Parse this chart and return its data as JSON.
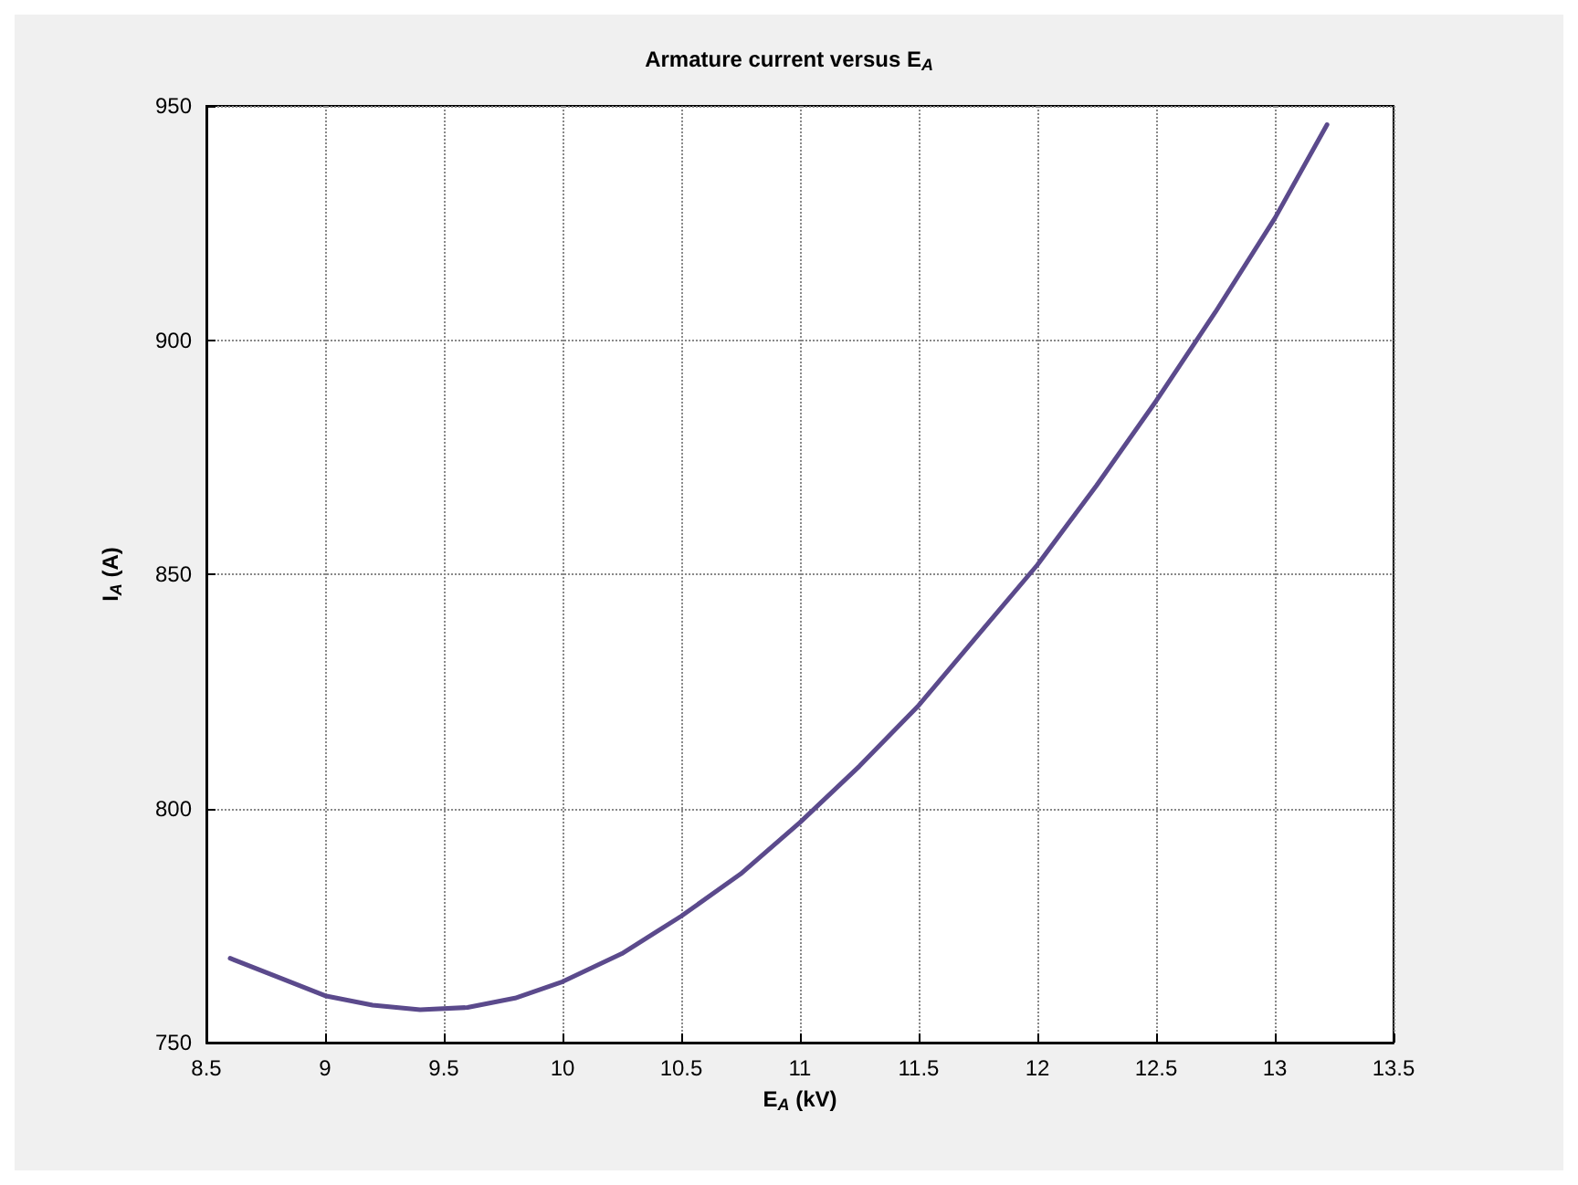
{
  "chart_data": {
    "type": "line",
    "title": "Armature current versus E$_{A}$",
    "xlabel": "E$_{A}$ (kV)",
    "ylabel": "I$_{A}$ (A)",
    "x": [
      8.6,
      8.8,
      9,
      9.2,
      9.4,
      9.6,
      9.8,
      10,
      10.25,
      10.5,
      10.75,
      11,
      11.25,
      11.5,
      11.75,
      12,
      12.25,
      12.5,
      12.75,
      13,
      13.22
    ],
    "series": [
      {
        "color": "#5b4a8c",
        "values": [
          768,
          764,
          760,
          758,
          757,
          757.5,
          759.5,
          763,
          769,
          777,
          786,
          797,
          809,
          822,
          837,
          852,
          869,
          887,
          906,
          926,
          946
        ]
      }
    ],
    "xlim": [
      8.5,
      13.5
    ],
    "xticks": [
      8.5,
      9,
      9.5,
      10,
      10.5,
      11,
      11.5,
      12,
      12.5,
      13,
      13.5
    ],
    "ylim": [
      750,
      950
    ],
    "yticks": [
      750,
      800,
      850,
      900,
      950
    ],
    "grid": true,
    "marker": "none",
    "line_style": "solid"
  }
}
